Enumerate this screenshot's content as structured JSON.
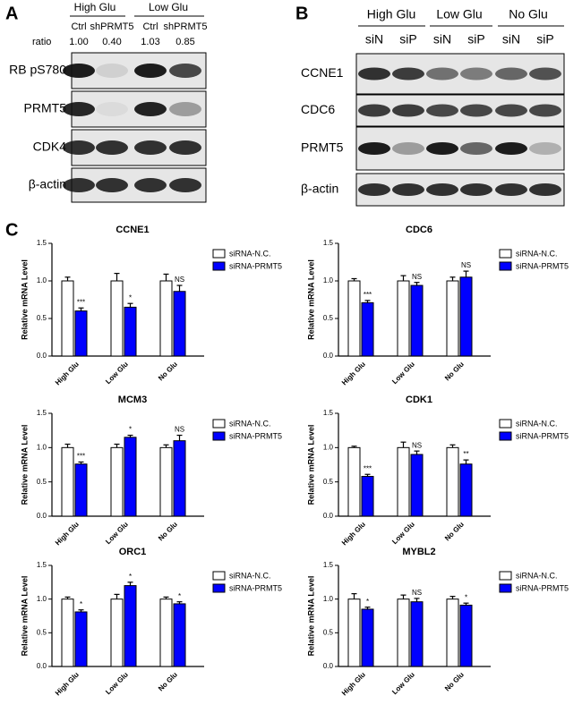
{
  "panels": {
    "A": {
      "label": "A",
      "groups": [
        "High Glu",
        "Low Glu"
      ],
      "lanes": [
        "Ctrl",
        "shPRMT5",
        "Ctrl",
        "shPRMT5"
      ],
      "ratio_label": "ratio",
      "ratios": [
        "1.00",
        "0.40",
        "1.03",
        "0.85"
      ],
      "rows": [
        "RB pS780",
        "PRMT5",
        "CDK4",
        "β-actin"
      ]
    },
    "B": {
      "label": "B",
      "groups": [
        "High Glu",
        "Low Glu",
        "No Glu"
      ],
      "lanes": [
        "siN",
        "siP",
        "siN",
        "siP",
        "siN",
        "siP"
      ],
      "rows": [
        "CCNE1",
        "CDC6",
        "PRMT5",
        "β-actin"
      ]
    },
    "C": {
      "label": "C"
    }
  },
  "chart_data": [
    {
      "type": "bar",
      "title": "CCNE1",
      "y_label": "Relative mRNA Level",
      "categories": [
        "High Glu",
        "Low Glu",
        "No Glu"
      ],
      "series": [
        {
          "name": "siRNA-N.C.",
          "color": "#ffffff",
          "values": [
            1.0,
            1.0,
            1.0
          ],
          "errors": [
            0.05,
            0.1,
            0.09
          ]
        },
        {
          "name": "siRNA-PRMT5",
          "color": "#0000ff",
          "values": [
            0.6,
            0.65,
            0.86
          ],
          "errors": [
            0.04,
            0.05,
            0.08
          ],
          "annotations": [
            "***",
            "*",
            "NS"
          ]
        }
      ],
      "ylim": [
        0,
        1.5
      ],
      "yticks": [
        {
          "value": 0,
          "label": "0.0"
        },
        {
          "value": 0.5,
          "label": "0.5"
        },
        {
          "value": 1,
          "label": "1.0"
        },
        {
          "value": 1.5,
          "label": "1.5"
        }
      ]
    },
    {
      "type": "bar",
      "title": "CDC6",
      "y_label": "Relative mRNA Level",
      "categories": [
        "High Glu",
        "Low Glu",
        "No Glu"
      ],
      "series": [
        {
          "name": "siRNA-N.C.",
          "color": "#ffffff",
          "values": [
            1.0,
            1.0,
            1.0
          ],
          "errors": [
            0.03,
            0.07,
            0.05
          ]
        },
        {
          "name": "siRNA-PRMT5",
          "color": "#0000ff",
          "values": [
            0.71,
            0.94,
            1.05
          ],
          "errors": [
            0.03,
            0.04,
            0.08
          ],
          "annotations": [
            "***",
            "NS",
            "NS"
          ]
        }
      ],
      "ylim": [
        0,
        1.5
      ],
      "yticks": [
        {
          "value": 0,
          "label": "0.0"
        },
        {
          "value": 0.5,
          "label": "0.5"
        },
        {
          "value": 1,
          "label": "1.0"
        },
        {
          "value": 1.5,
          "label": "1.5"
        }
      ]
    },
    {
      "type": "bar",
      "title": "MCM3",
      "y_label": "Relative mRNA Level",
      "categories": [
        "High Glu",
        "Low Glu",
        "No Glu"
      ],
      "series": [
        {
          "name": "siRNA-N.C.",
          "color": "#ffffff",
          "values": [
            1.0,
            1.0,
            1.0
          ],
          "errors": [
            0.05,
            0.05,
            0.04
          ]
        },
        {
          "name": "siRNA-PRMT5",
          "color": "#0000ff",
          "values": [
            0.76,
            1.15,
            1.1
          ],
          "errors": [
            0.03,
            0.03,
            0.08
          ],
          "annotations": [
            "***",
            "*",
            "NS"
          ]
        }
      ],
      "ylim": [
        0,
        1.5
      ],
      "yticks": [
        {
          "value": 0,
          "label": "0.0"
        },
        {
          "value": 0.5,
          "label": "0.5"
        },
        {
          "value": 1,
          "label": "1.0"
        },
        {
          "value": 1.5,
          "label": "1.5"
        }
      ]
    },
    {
      "type": "bar",
      "title": "CDK1",
      "y_label": "Relative mRNA Level",
      "categories": [
        "High Glu",
        "Low Glu",
        "No Glu"
      ],
      "series": [
        {
          "name": "siRNA-N.C.",
          "color": "#ffffff",
          "values": [
            1.0,
            1.0,
            1.0
          ],
          "errors": [
            0.02,
            0.08,
            0.04
          ]
        },
        {
          "name": "siRNA-PRMT5",
          "color": "#0000ff",
          "values": [
            0.58,
            0.9,
            0.76
          ],
          "errors": [
            0.03,
            0.05,
            0.06
          ],
          "annotations": [
            "***",
            "NS",
            "**"
          ]
        }
      ],
      "ylim": [
        0,
        1.5
      ],
      "yticks": [
        {
          "value": 0,
          "label": "0.0"
        },
        {
          "value": 0.5,
          "label": "0.5"
        },
        {
          "value": 1,
          "label": "1.0"
        },
        {
          "value": 1.5,
          "label": "1.5"
        }
      ]
    },
    {
      "type": "bar",
      "title": "ORC1",
      "y_label": "Relative mRNA Level",
      "categories": [
        "High Glu",
        "Low Glu",
        "No Glu"
      ],
      "series": [
        {
          "name": "siRNA-N.C.",
          "color": "#ffffff",
          "values": [
            1.0,
            1.0,
            1.0
          ],
          "errors": [
            0.03,
            0.07,
            0.03
          ]
        },
        {
          "name": "siRNA-PRMT5",
          "color": "#0000ff",
          "values": [
            0.81,
            1.2,
            0.93
          ],
          "errors": [
            0.03,
            0.05,
            0.03
          ],
          "annotations": [
            "*",
            "*",
            "*"
          ]
        }
      ],
      "ylim": [
        0,
        1.5
      ],
      "yticks": [
        {
          "value": 0,
          "label": "0.0"
        },
        {
          "value": 0.5,
          "label": "0.5"
        },
        {
          "value": 1,
          "label": "1.0"
        },
        {
          "value": 1.5,
          "label": "1.5"
        }
      ]
    },
    {
      "type": "bar",
      "title": "MYBL2",
      "y_label": "Relative mRNA Level",
      "categories": [
        "High Glu",
        "Low Glu",
        "No Glu"
      ],
      "series": [
        {
          "name": "siRNA-N.C.",
          "color": "#ffffff",
          "values": [
            1.0,
            1.0,
            1.0
          ],
          "errors": [
            0.08,
            0.06,
            0.04
          ]
        },
        {
          "name": "siRNA-PRMT5",
          "color": "#0000ff",
          "values": [
            0.85,
            0.96,
            0.91
          ],
          "errors": [
            0.03,
            0.05,
            0.03
          ],
          "annotations": [
            "*",
            "NS",
            "*"
          ]
        }
      ],
      "ylim": [
        0,
        1.5
      ],
      "yticks": [
        {
          "value": 0,
          "label": "0.0"
        },
        {
          "value": 0.5,
          "label": "0.5"
        },
        {
          "value": 1,
          "label": "1.0"
        },
        {
          "value": 1.5,
          "label": "1.5"
        }
      ]
    }
  ]
}
